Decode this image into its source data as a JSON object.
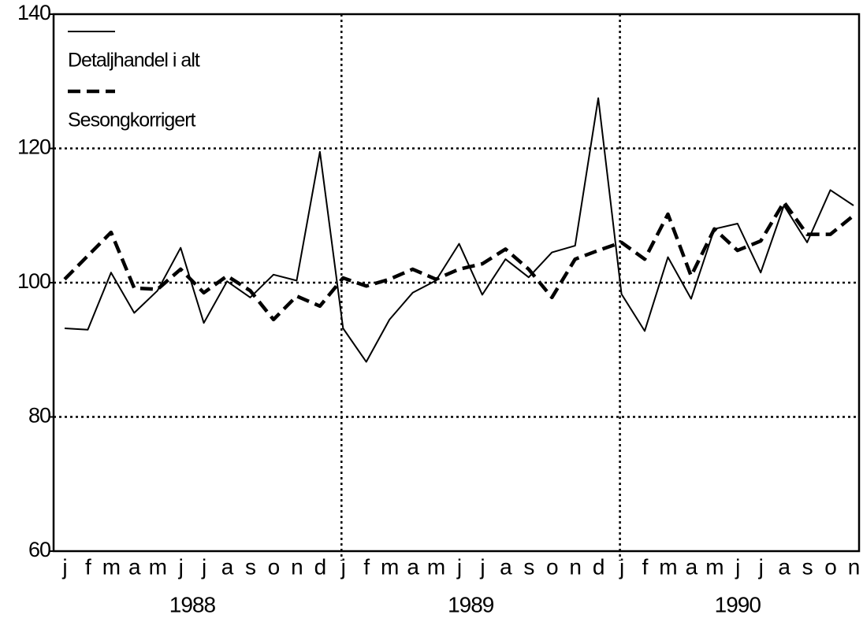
{
  "chart_data": {
    "type": "line",
    "categories": [
      "j",
      "f",
      "m",
      "a",
      "m",
      "j",
      "j",
      "a",
      "s",
      "o",
      "n",
      "d",
      "j",
      "f",
      "m",
      "a",
      "m",
      "j",
      "j",
      "a",
      "s",
      "o",
      "n",
      "d",
      "j",
      "f",
      "m",
      "a",
      "m",
      "j",
      "j",
      "a",
      "s",
      "o",
      "n"
    ],
    "year_labels": [
      "1988",
      "1989",
      "1990"
    ],
    "series": [
      {
        "name": "Detaljhandel i alt",
        "color": "#000000",
        "dash": "solid",
        "values": [
          93.2,
          93.0,
          101.5,
          95.5,
          98.8,
          105.2,
          94.0,
          100.2,
          97.8,
          101.2,
          100.3,
          119.5,
          93.2,
          88.2,
          94.5,
          98.5,
          100.3,
          105.8,
          98.2,
          103.5,
          100.8,
          104.5,
          105.5,
          127.5,
          98.3,
          92.8,
          103.8,
          97.6,
          108.0,
          108.8,
          101.5,
          111.5,
          106.0,
          113.8,
          111.5
        ]
      },
      {
        "name": "Sesongkorrigert",
        "color": "#000000",
        "dash": "dashed",
        "values": [
          100.5,
          104.0,
          107.5,
          99.2,
          99.0,
          102.0,
          98.5,
          101.0,
          98.8,
          94.5,
          98.0,
          96.5,
          100.7,
          99.5,
          100.5,
          102.0,
          100.5,
          102.0,
          102.8,
          105.0,
          102.0,
          97.8,
          103.5,
          104.8,
          106.0,
          103.5,
          110.2,
          101.0,
          108.0,
          104.8,
          106.2,
          112.0,
          107.2,
          107.2,
          110.0
        ]
      }
    ],
    "ylim": [
      60,
      140
    ],
    "yticks": [
      60,
      80,
      100,
      120,
      140
    ],
    "grid": true,
    "legend": "upper left"
  }
}
